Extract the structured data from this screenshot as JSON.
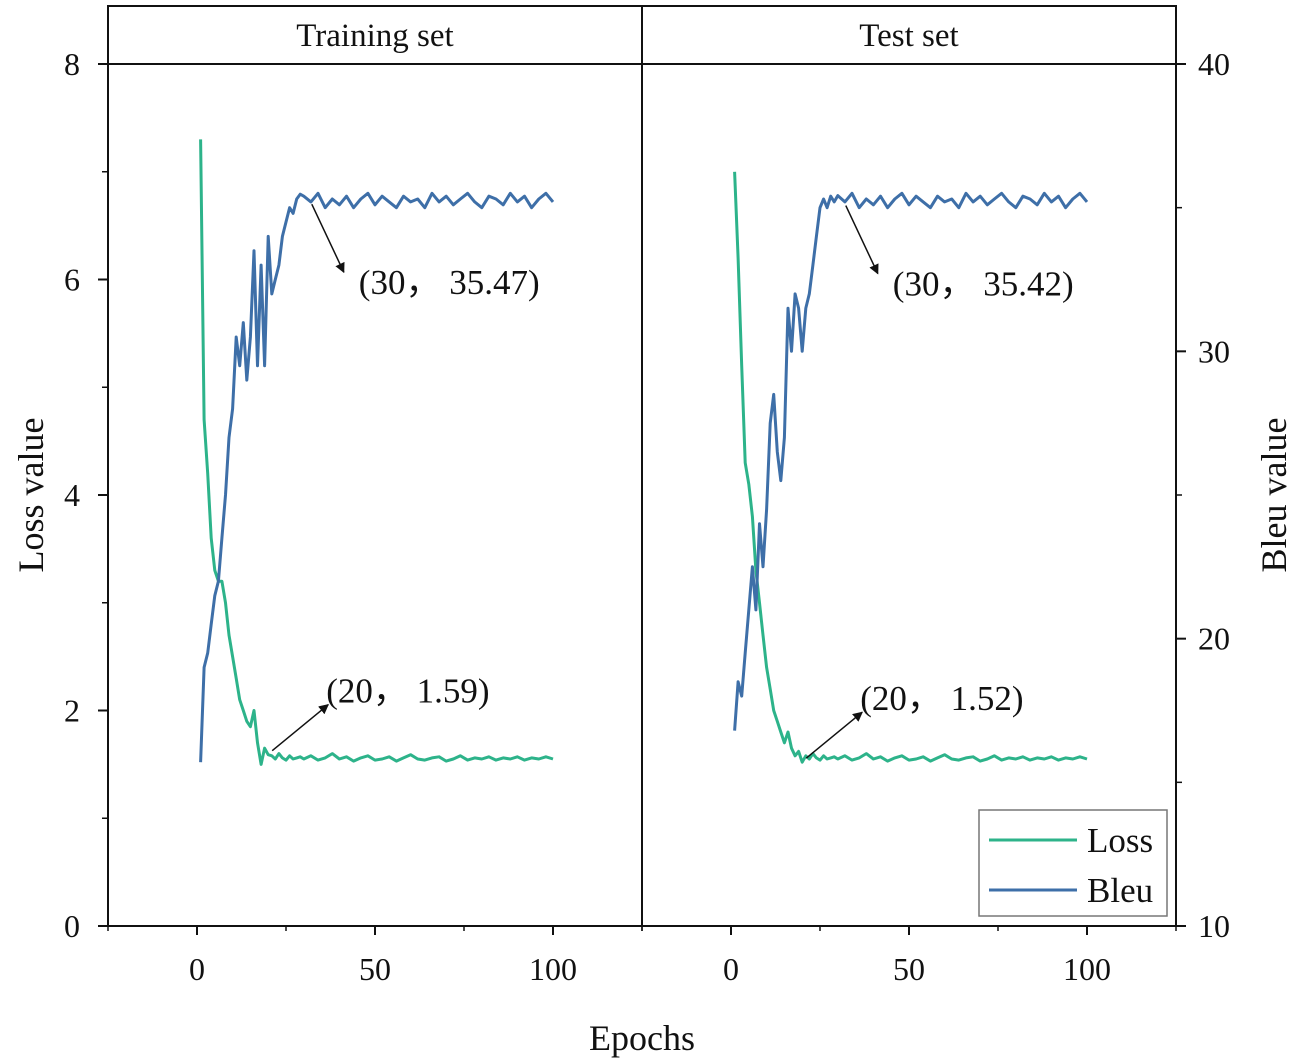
{
  "chart_data": {
    "type": "line",
    "xlabel": "Epochs",
    "ylabel_left": "Loss value",
    "ylabel_right": "Bleu value",
    "xlim": [
      -25,
      125
    ],
    "ylim_left": [
      0,
      8
    ],
    "ylim_right": [
      10,
      40
    ],
    "x_ticks": [
      0,
      50,
      100
    ],
    "y_ticks_left": [
      0,
      2,
      4,
      6,
      8
    ],
    "y_ticks_right": [
      10,
      20,
      30,
      40
    ],
    "grid": false,
    "legend": {
      "placement": "bottom-right",
      "entries": [
        {
          "name": "Loss",
          "color": "#2db38a"
        },
        {
          "name": "Bleu",
          "color": "#3e6fa8"
        }
      ]
    },
    "colors": {
      "loss": "#2db38a",
      "bleu": "#3e6fa8",
      "axis": "#111111"
    },
    "panels": [
      {
        "title": "Training set",
        "series": [
          {
            "name": "Loss",
            "axis": "left",
            "x": [
              1,
              2,
              3,
              4,
              5,
              6,
              7,
              8,
              9,
              10,
              11,
              12,
              13,
              14,
              15,
              16,
              17,
              18,
              19,
              20,
              21,
              22,
              23,
              24,
              25,
              26,
              27,
              28,
              29,
              30,
              32,
              34,
              36,
              38,
              40,
              42,
              44,
              46,
              48,
              50,
              52,
              54,
              56,
              58,
              60,
              62,
              64,
              66,
              68,
              70,
              72,
              74,
              76,
              78,
              80,
              82,
              84,
              86,
              88,
              90,
              92,
              94,
              96,
              98,
              100
            ],
            "values": [
              7.3,
              4.7,
              4.2,
              3.6,
              3.3,
              3.2,
              3.2,
              3.0,
              2.7,
              2.5,
              2.3,
              2.1,
              2.0,
              1.9,
              1.85,
              2.0,
              1.7,
              1.5,
              1.65,
              1.59,
              1.58,
              1.55,
              1.6,
              1.56,
              1.54,
              1.58,
              1.55,
              1.56,
              1.57,
              1.55,
              1.58,
              1.54,
              1.56,
              1.6,
              1.55,
              1.57,
              1.53,
              1.56,
              1.58,
              1.54,
              1.55,
              1.57,
              1.53,
              1.56,
              1.59,
              1.55,
              1.54,
              1.56,
              1.57,
              1.53,
              1.55,
              1.58,
              1.54,
              1.56,
              1.55,
              1.57,
              1.54,
              1.56,
              1.55,
              1.57,
              1.54,
              1.56,
              1.55,
              1.57,
              1.55
            ]
          },
          {
            "name": "Bleu",
            "axis": "right",
            "x": [
              1,
              2,
              3,
              4,
              5,
              6,
              7,
              8,
              9,
              10,
              11,
              12,
              13,
              14,
              15,
              16,
              17,
              18,
              19,
              20,
              21,
              22,
              23,
              24,
              25,
              26,
              27,
              28,
              29,
              30,
              32,
              34,
              36,
              38,
              40,
              42,
              44,
              46,
              48,
              50,
              52,
              54,
              56,
              58,
              60,
              62,
              64,
              66,
              68,
              70,
              72,
              74,
              76,
              78,
              80,
              82,
              84,
              86,
              88,
              90,
              92,
              94,
              96,
              98,
              100
            ],
            "values": [
              15.7,
              19.0,
              19.5,
              20.5,
              21.5,
              22.0,
              23.5,
              25.0,
              27.0,
              28.0,
              30.5,
              29.5,
              31.0,
              29.0,
              30.5,
              33.5,
              29.5,
              33.0,
              29.5,
              34.0,
              32.0,
              32.5,
              33.0,
              34.0,
              34.5,
              35.0,
              34.8,
              35.3,
              35.47,
              35.4,
              35.2,
              35.5,
              35.0,
              35.3,
              35.1,
              35.4,
              35.0,
              35.3,
              35.5,
              35.1,
              35.4,
              35.2,
              35.0,
              35.4,
              35.2,
              35.3,
              35.0,
              35.5,
              35.2,
              35.4,
              35.1,
              35.3,
              35.5,
              35.2,
              35.0,
              35.4,
              35.3,
              35.1,
              35.5,
              35.2,
              35.4,
              35.0,
              35.3,
              35.5,
              35.2
            ]
          }
        ],
        "annotations": [
          {
            "text": "(30， 35.47)",
            "x": 30,
            "value": 35.47,
            "axis": "right"
          },
          {
            "text": "(20， 1.59)",
            "x": 20,
            "value": 1.59,
            "axis": "left"
          }
        ]
      },
      {
        "title": "Test set",
        "series": [
          {
            "name": "Loss",
            "axis": "left",
            "x": [
              1,
              2,
              3,
              4,
              5,
              6,
              7,
              8,
              9,
              10,
              11,
              12,
              13,
              14,
              15,
              16,
              17,
              18,
              19,
              20,
              21,
              22,
              23,
              24,
              25,
              26,
              27,
              28,
              29,
              30,
              32,
              34,
              36,
              38,
              40,
              42,
              44,
              46,
              48,
              50,
              52,
              54,
              56,
              58,
              60,
              62,
              64,
              66,
              68,
              70,
              72,
              74,
              76,
              78,
              80,
              82,
              84,
              86,
              88,
              90,
              92,
              94,
              96,
              98,
              100
            ],
            "values": [
              7.0,
              6.2,
              5.2,
              4.3,
              4.1,
              3.8,
              3.3,
              3.0,
              2.7,
              2.4,
              2.2,
              2.0,
              1.9,
              1.8,
              1.7,
              1.8,
              1.65,
              1.58,
              1.62,
              1.52,
              1.58,
              1.55,
              1.6,
              1.56,
              1.54,
              1.58,
              1.55,
              1.56,
              1.57,
              1.55,
              1.58,
              1.54,
              1.56,
              1.6,
              1.55,
              1.57,
              1.53,
              1.56,
              1.58,
              1.54,
              1.55,
              1.57,
              1.53,
              1.56,
              1.59,
              1.55,
              1.54,
              1.56,
              1.57,
              1.53,
              1.55,
              1.58,
              1.54,
              1.56,
              1.55,
              1.57,
              1.54,
              1.56,
              1.55,
              1.57,
              1.54,
              1.56,
              1.55,
              1.57,
              1.55
            ]
          },
          {
            "name": "Bleu",
            "axis": "right",
            "x": [
              1,
              2,
              3,
              4,
              5,
              6,
              7,
              8,
              9,
              10,
              11,
              12,
              13,
              14,
              15,
              16,
              17,
              18,
              19,
              20,
              21,
              22,
              23,
              24,
              25,
              26,
              27,
              28,
              29,
              30,
              32,
              34,
              36,
              38,
              40,
              42,
              44,
              46,
              48,
              50,
              52,
              54,
              56,
              58,
              60,
              62,
              64,
              66,
              68,
              70,
              72,
              74,
              76,
              78,
              80,
              82,
              84,
              86,
              88,
              90,
              92,
              94,
              96,
              98,
              100
            ],
            "values": [
              16.8,
              18.5,
              18.0,
              19.5,
              21.0,
              22.5,
              21.0,
              24.0,
              22.5,
              24.5,
              27.5,
              28.5,
              26.5,
              25.5,
              27.0,
              31.5,
              30.0,
              32.0,
              31.5,
              30.0,
              31.5,
              32.0,
              33.0,
              34.0,
              35.0,
              35.3,
              35.0,
              35.4,
              35.2,
              35.42,
              35.2,
              35.5,
              35.0,
              35.3,
              35.1,
              35.4,
              35.0,
              35.3,
              35.5,
              35.1,
              35.4,
              35.2,
              35.0,
              35.4,
              35.2,
              35.3,
              35.0,
              35.5,
              35.2,
              35.4,
              35.1,
              35.3,
              35.5,
              35.2,
              35.0,
              35.4,
              35.3,
              35.1,
              35.5,
              35.2,
              35.4,
              35.0,
              35.3,
              35.5,
              35.2
            ]
          }
        ],
        "annotations": [
          {
            "text": "(30， 35.42)",
            "x": 30,
            "value": 35.42,
            "axis": "right"
          },
          {
            "text": "(20， 1.52)",
            "x": 20,
            "value": 1.52,
            "axis": "left"
          }
        ]
      }
    ]
  }
}
